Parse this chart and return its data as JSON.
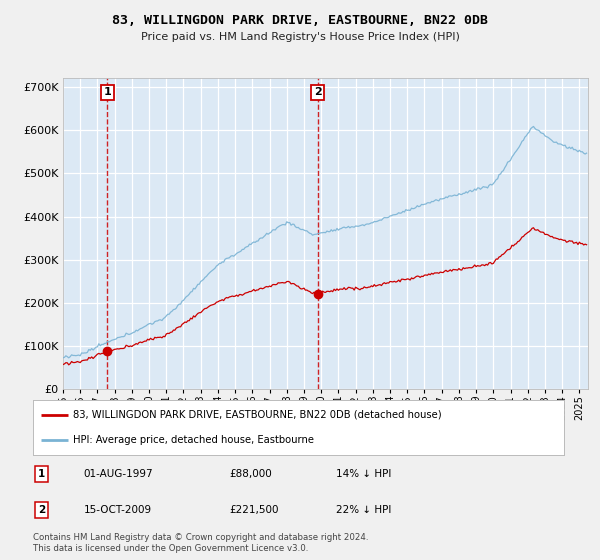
{
  "title": "83, WILLINGDON PARK DRIVE, EASTBOURNE, BN22 0DB",
  "subtitle": "Price paid vs. HM Land Registry's House Price Index (HPI)",
  "ylim": [
    0,
    720000
  ],
  "yticks": [
    0,
    100000,
    200000,
    300000,
    400000,
    500000,
    600000,
    700000
  ],
  "ytick_labels": [
    "£0",
    "£100K",
    "£200K",
    "£300K",
    "£400K",
    "£500K",
    "£600K",
    "£700K"
  ],
  "sale1_date": 1997.583,
  "sale1_price": 88000,
  "sale1_label": "1",
  "sale2_date": 2009.792,
  "sale2_price": 221500,
  "sale2_label": "2",
  "hpi_color": "#7ab3d4",
  "sale_color": "#cc0000",
  "dashed_color": "#cc0000",
  "plot_bg": "#dce9f5",
  "grid_color": "#ffffff",
  "fig_bg": "#f0f0f0",
  "legend1_text": "83, WILLINGDON PARK DRIVE, EASTBOURNE, BN22 0DB (detached house)",
  "legend2_text": "HPI: Average price, detached house, Eastbourne",
  "ann1_label": "1",
  "ann1_date": "01-AUG-1997",
  "ann1_price": "£88,000",
  "ann1_hpi": "14% ↓ HPI",
  "ann2_label": "2",
  "ann2_date": "15-OCT-2009",
  "ann2_price": "£221,500",
  "ann2_hpi": "22% ↓ HPI",
  "footer": "Contains HM Land Registry data © Crown copyright and database right 2024.\nThis data is licensed under the Open Government Licence v3.0.",
  "xlim_start": 1995.0,
  "xlim_end": 2025.5,
  "xtick_years": [
    1995,
    1996,
    1997,
    1998,
    1999,
    2000,
    2001,
    2002,
    2003,
    2004,
    2005,
    2006,
    2007,
    2008,
    2009,
    2010,
    2011,
    2012,
    2013,
    2014,
    2015,
    2016,
    2017,
    2018,
    2019,
    2020,
    2021,
    2022,
    2023,
    2024,
    2025
  ]
}
